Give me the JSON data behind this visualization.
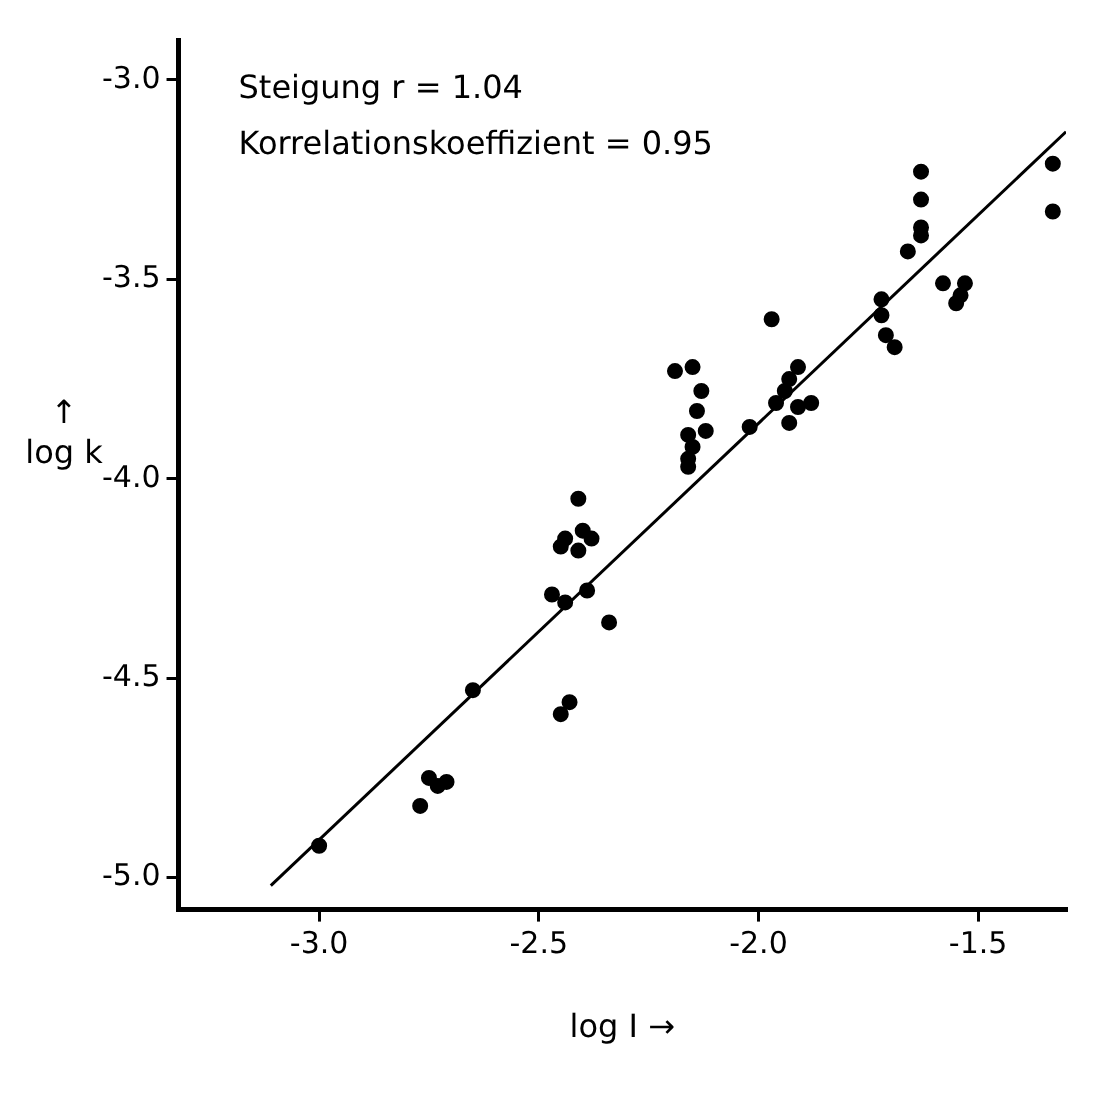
{
  "chart_data": {
    "type": "scatter",
    "xlabel": "log I →",
    "ylabel": "↑\nlog k",
    "annotations": [
      "Steigung r = 1.04",
      "Korrelationskoeffizient = 0.95"
    ],
    "xlim": [
      -3.32,
      -1.3
    ],
    "ylim": [
      -5.08,
      -2.9
    ],
    "xticks": [
      {
        "value": -3,
        "label": "-3.0"
      },
      -2.5,
      {
        "value": -2,
        "label": "-2.0"
      },
      -1.5
    ],
    "yticks": [
      {
        "value": -5,
        "label": "-5.0"
      },
      -4.5,
      {
        "value": -4,
        "label": "-4.0"
      },
      -3.5,
      {
        "value": -3,
        "label": "-3.0"
      }
    ],
    "grid": false,
    "legend": false,
    "marker": "circle",
    "series": [
      {
        "color": "#000000",
        "x": [
          -2.47,
          -2.44,
          -2.39,
          -2.34,
          -2.65,
          -2.43,
          -2.45,
          -2.75,
          -2.73,
          -2.71,
          -2.76,
          -2.77,
          -3.0,
          -2.41,
          -2.44,
          -2.4,
          -2.38,
          -2.45,
          -2.41,
          -2.19,
          -2.15,
          -2.13,
          -2.14,
          -2.12,
          -2.16,
          -2.15,
          -2.16,
          -2.16,
          -2.02,
          -1.97,
          -1.91,
          -1.93,
          -1.94,
          -1.96,
          -1.93,
          -1.88,
          -1.91,
          -1.72,
          -1.71,
          -1.69,
          -1.63,
          -1.63,
          -1.63,
          -1.63,
          -1.66,
          -1.33,
          -1.33,
          -1.58,
          -1.53,
          -1.54,
          -1.55,
          -1.72
        ],
        "values": [
          -4.29,
          -4.31,
          -4.28,
          -4.36,
          -4.53,
          -4.56,
          -4.59,
          -4.75,
          -4.77,
          -4.76,
          null,
          -4.82,
          -4.92,
          -4.05,
          -4.15,
          -4.13,
          -4.15,
          -4.17,
          -4.18,
          -3.73,
          -3.72,
          -3.78,
          -3.83,
          -3.88,
          -3.89,
          -3.92,
          -3.95,
          -3.97,
          -3.87,
          -3.6,
          -3.72,
          -3.75,
          -3.78,
          -3.81,
          -3.86,
          -3.81,
          -3.82,
          -3.59,
          -3.64,
          -3.67,
          -3.23,
          -3.3,
          -3.37,
          -3.39,
          -3.43,
          -3.21,
          -3.33,
          -3.51,
          -3.51,
          -3.54,
          -3.56,
          -3.55
        ]
      },
      {
        "type": "line",
        "color": "#000000",
        "marker": "none",
        "x": [
          -3.11,
          -1.3
        ],
        "values": [
          -5.02,
          -3.13
        ]
      }
    ]
  }
}
